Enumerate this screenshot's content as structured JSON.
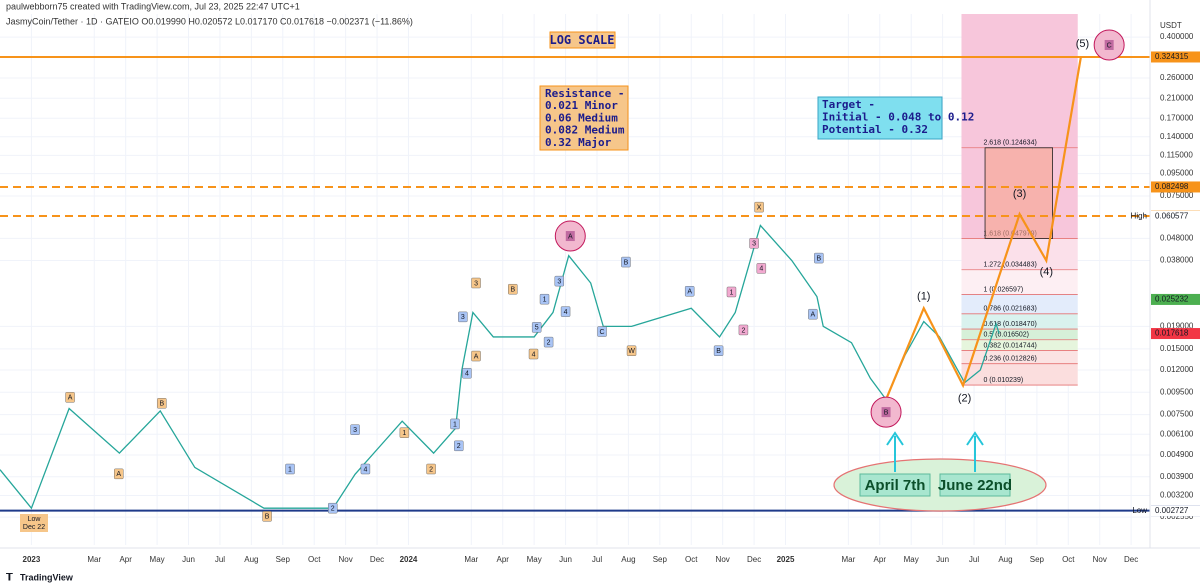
{
  "header": {
    "author": "paulwebborn75 created with TradingView.com, Jul 23, 2025 22:47 UTC+1",
    "symbol": "JasmyCoin/Tether · 1D · GATEIO  O0.019990  H0.020572  L0.017170  C0.017618  −0.002371 (−11.86%)",
    "currency": "USDT",
    "footer": "TradingView"
  },
  "chart_data": {
    "type": "line",
    "log_scale": true,
    "xlim": [
      -1,
      35.6
    ],
    "ylim": [
      0.0019,
      0.51
    ],
    "yticks": [
      {
        "value": 0.4,
        "label": "0.400000"
      },
      {
        "value": 0.26,
        "label": "0.260000"
      },
      {
        "value": 0.21,
        "label": "0.210000"
      },
      {
        "value": 0.17,
        "label": "0.170000"
      },
      {
        "value": 0.14,
        "label": "0.140000"
      },
      {
        "value": 0.115,
        "label": "0.115000"
      },
      {
        "value": 0.095,
        "label": "0.095000"
      },
      {
        "value": 0.075,
        "label": "0.075000"
      },
      {
        "value": 0.048,
        "label": "0.048000"
      },
      {
        "value": 0.038,
        "label": "0.038000"
      },
      {
        "value": 0.019,
        "label": "0.019000"
      },
      {
        "value": 0.015,
        "label": "0.015000"
      },
      {
        "value": 0.012,
        "label": "0.012000"
      },
      {
        "value": 0.0095,
        "label": "0.009500"
      },
      {
        "value": 0.0075,
        "label": "0.007500"
      },
      {
        "value": 0.0061,
        "label": "0.006100"
      },
      {
        "value": 0.0049,
        "label": "0.004900"
      },
      {
        "value": 0.0039,
        "label": "0.003900"
      },
      {
        "value": 0.0032,
        "label": "0.003200"
      },
      {
        "value": 0.00255,
        "label": "0.002550"
      }
    ],
    "xticks": [
      {
        "value": 0,
        "label": "2023"
      },
      {
        "value": 2,
        "label": "Mar"
      },
      {
        "value": 3,
        "label": "Apr"
      },
      {
        "value": 4,
        "label": "May"
      },
      {
        "value": 5,
        "label": "Jun"
      },
      {
        "value": 6,
        "label": "Jul"
      },
      {
        "value": 7,
        "label": "Aug"
      },
      {
        "value": 8,
        "label": "Sep"
      },
      {
        "value": 9,
        "label": "Oct"
      },
      {
        "value": 10,
        "label": "Nov"
      },
      {
        "value": 11,
        "label": "Dec"
      },
      {
        "value": 12,
        "label": "2024"
      },
      {
        "value": 14,
        "label": "Mar"
      },
      {
        "value": 15,
        "label": "Apr"
      },
      {
        "value": 16,
        "label": "May"
      },
      {
        "value": 17,
        "label": "Jun"
      },
      {
        "value": 18,
        "label": "Jul"
      },
      {
        "value": 19,
        "label": "Aug"
      },
      {
        "value": 20,
        "label": "Sep"
      },
      {
        "value": 21,
        "label": "Oct"
      },
      {
        "value": 22,
        "label": "Nov"
      },
      {
        "value": 23,
        "label": "Dec"
      },
      {
        "value": 24,
        "label": "2025"
      },
      {
        "value": 26,
        "label": "Mar"
      },
      {
        "value": 27,
        "label": "Apr"
      },
      {
        "value": 28,
        "label": "May"
      },
      {
        "value": 29,
        "label": "Jun"
      },
      {
        "value": 30,
        "label": "Jul"
      },
      {
        "value": 31,
        "label": "Aug"
      },
      {
        "value": 32,
        "label": "Sep"
      },
      {
        "value": 33,
        "label": "Oct"
      },
      {
        "value": 34,
        "label": "Nov"
      },
      {
        "value": 35,
        "label": "Dec"
      }
    ],
    "price": {
      "color": "#26a69a",
      "x": [
        -1,
        0,
        1.2,
        2.8,
        4.1,
        5.2,
        7.4,
        9.6,
        10.3,
        11.8,
        12.8,
        13.5,
        13.7,
        14.05,
        14.7,
        16,
        16.6,
        17.1,
        17.8,
        18.2,
        19.1,
        21,
        21.9,
        22.4,
        23.2,
        24.2,
        25,
        25.2,
        26.1,
        26.7,
        27.2,
        27.8,
        28.4,
        28.9,
        29.7,
        30.2,
        30.7,
        30.8
      ],
      "values": [
        0.0042,
        0.0028,
        0.008,
        0.005,
        0.0078,
        0.0043,
        0.0028,
        0.0028,
        0.004,
        0.007,
        0.005,
        0.0065,
        0.012,
        0.022,
        0.017,
        0.017,
        0.022,
        0.04,
        0.03,
        0.019,
        0.019,
        0.023,
        0.017,
        0.022,
        0.055,
        0.038,
        0.026,
        0.019,
        0.016,
        0.011,
        0.0088,
        0.014,
        0.02,
        0.017,
        0.0105,
        0.012,
        0.0195,
        0.0176
      ]
    },
    "waves": {
      "color": "#f7931a",
      "x": [
        27.2,
        28.4,
        29.65,
        31.45,
        32.3,
        33.4
      ],
      "values": [
        0.0088,
        0.023,
        0.0102,
        0.062,
        0.038,
        0.324
      ]
    },
    "wave_labels": [
      {
        "label": "(1)",
        "x": 28.4,
        "value": 0.026
      },
      {
        "label": "(2)",
        "x": 29.7,
        "value": 0.0089
      },
      {
        "label": "(3)",
        "x": 31.45,
        "value": 0.0765
      },
      {
        "label": "(4)",
        "x": 32.3,
        "value": 0.0336
      },
      {
        "label": "(5)",
        "x": 33.45,
        "value": 0.371
      }
    ],
    "circles": [
      {
        "label": "A",
        "x": 17.15,
        "value": 0.0492
      },
      {
        "label": "C",
        "x": 34.3,
        "value": 0.368
      },
      {
        "label": "B",
        "x": 27.2,
        "value": 0.0077
      }
    ],
    "markers": [
      {
        "label": "A",
        "x": 1.23,
        "value": 0.009,
        "color": "#f6c68a"
      },
      {
        "label": "A",
        "x": 2.78,
        "value": 0.00402,
        "color": "#f6c68a"
      },
      {
        "label": "B",
        "x": 4.15,
        "value": 0.00845,
        "color": "#f6c68a"
      },
      {
        "label": "B",
        "x": 7.5,
        "value": 0.00257,
        "color": "#f6c68a"
      },
      {
        "label": "1",
        "x": 8.23,
        "value": 0.00423,
        "color": "#a9c4f5"
      },
      {
        "label": "2",
        "x": 9.59,
        "value": 0.0028,
        "color": "#a9c4f5"
      },
      {
        "label": "3",
        "x": 10.3,
        "value": 0.0064,
        "color": "#a9c4f5"
      },
      {
        "label": "4",
        "x": 10.63,
        "value": 0.00423,
        "color": "#a9c4f5"
      },
      {
        "label": "1",
        "x": 11.87,
        "value": 0.0062,
        "color": "#f6c68a"
      },
      {
        "label": "2",
        "x": 12.72,
        "value": 0.00423,
        "color": "#f6c68a"
      },
      {
        "label": "1",
        "x": 13.48,
        "value": 0.0068,
        "color": "#a9c4f5"
      },
      {
        "label": "2",
        "x": 13.6,
        "value": 0.0054,
        "color": "#a9c4f5"
      },
      {
        "label": "3",
        "x": 13.73,
        "value": 0.021,
        "color": "#a9c4f5"
      },
      {
        "label": "4",
        "x": 13.86,
        "value": 0.0116,
        "color": "#a9c4f5"
      },
      {
        "label": "3",
        "x": 14.15,
        "value": 0.03,
        "color": "#f6c68a"
      },
      {
        "label": "A",
        "x": 14.15,
        "value": 0.0139,
        "color": "#f6c68a"
      },
      {
        "label": "B",
        "x": 15.32,
        "value": 0.0281,
        "color": "#f6c68a"
      },
      {
        "label": "4",
        "x": 15.98,
        "value": 0.0142,
        "color": "#f6c68a"
      },
      {
        "label": "5",
        "x": 16.08,
        "value": 0.0188,
        "color": "#a9c4f5"
      },
      {
        "label": "1",
        "x": 16.33,
        "value": 0.0253,
        "color": "#a9c4f5"
      },
      {
        "label": "2",
        "x": 16.46,
        "value": 0.0161,
        "color": "#a9c4f5"
      },
      {
        "label": "3",
        "x": 16.8,
        "value": 0.0306,
        "color": "#a9c4f5"
      },
      {
        "label": "4",
        "x": 17.0,
        "value": 0.0222,
        "color": "#a9c4f5"
      },
      {
        "label": "C",
        "x": 18.16,
        "value": 0.018,
        "color": "#a9c4f5"
      },
      {
        "label": "B",
        "x": 18.92,
        "value": 0.0374,
        "color": "#a9c4f5"
      },
      {
        "label": "W",
        "x": 19.1,
        "value": 0.0147,
        "color": "#f6c68a"
      },
      {
        "label": "A",
        "x": 20.95,
        "value": 0.0275,
        "color": "#a9c4f5"
      },
      {
        "label": "B",
        "x": 21.87,
        "value": 0.0147,
        "color": "#a9c4f5"
      },
      {
        "label": "1",
        "x": 22.28,
        "value": 0.0273,
        "color": "#f2a9d0"
      },
      {
        "label": "2",
        "x": 22.66,
        "value": 0.0183,
        "color": "#f2a9d0"
      },
      {
        "label": "3",
        "x": 23.0,
        "value": 0.0456,
        "color": "#f2a9d0"
      },
      {
        "label": "4",
        "x": 23.23,
        "value": 0.035,
        "color": "#f2a9d0"
      },
      {
        "label": "X",
        "x": 23.16,
        "value": 0.0667,
        "color": "#f6c68a"
      },
      {
        "label": "A",
        "x": 24.87,
        "value": 0.0216,
        "color": "#a9c4f5"
      },
      {
        "label": "B",
        "x": 25.06,
        "value": 0.039,
        "color": "#a9c4f5"
      }
    ],
    "fib": {
      "x": [
        29.6,
        33.3
      ],
      "levels": [
        {
          "value": 0.124634,
          "label": "2.618 (0.124634)",
          "color": "#f7c6db"
        },
        {
          "value": 0.047979,
          "label": "1.618 (0.047979)",
          "color": "#fbe0ea"
        },
        {
          "value": 0.034483,
          "label": "1.272 (0.034483)",
          "color": "#fdeff3"
        },
        {
          "value": 0.026597,
          "label": "1 (0.026597)",
          "color": "#e3ecfb"
        },
        {
          "value": 0.021683,
          "label": "0.786 (0.021683)",
          "color": "#d9f2ee"
        },
        {
          "value": 0.01847,
          "label": "0.618 (0.018470)",
          "color": "#d6f0d8"
        },
        {
          "value": 0.016502,
          "label": "0.5 (0.016502)",
          "color": "#e6f5dd"
        },
        {
          "value": 0.014744,
          "label": "0.382 (0.014744)",
          "color": "#fbe3e3"
        },
        {
          "value": 0.012826,
          "label": "0.236 (0.012826)",
          "color": "#fbdede"
        },
        {
          "value": 0.010239,
          "label": "0 (0.010239)",
          "color": "#ffffff"
        }
      ]
    },
    "target_zone": {
      "x": [
        30.35,
        32.5
      ],
      "values": [
        0.047979,
        0.124634
      ],
      "color": "#f6a58e"
    },
    "hlines": [
      {
        "value": 0.324315,
        "color": "#f7931a",
        "dashed": false
      },
      {
        "value": 0.082498,
        "color": "#f7931a",
        "dashed": true
      },
      {
        "value": 0.060773,
        "color": "#f7931a",
        "dashed": true
      },
      {
        "value": 0.002729,
        "color": "#1e3a8a",
        "dashed": false
      }
    ],
    "price_tags": [
      {
        "value": 0.324315,
        "label": "0.324315",
        "color": "#f7931a"
      },
      {
        "value": 0.082498,
        "label": "0.082498",
        "color": "#f7931a"
      },
      {
        "value": 0.060773,
        "label": "0.060773",
        "color": "#f7931a"
      },
      {
        "value": 0.060577,
        "label": "0.060577",
        "color": "#ffffff",
        "note": "High"
      },
      {
        "value": 0.025232,
        "label": "0.025232",
        "color": "#4caf50"
      },
      {
        "value": 0.017618,
        "label": "0.017618",
        "color": "#f23645"
      },
      {
        "value": 0.002729,
        "label": "0.002729",
        "color": "#1e3a8a"
      },
      {
        "value": 0.002727,
        "label": "0.002727",
        "color": "#ffffff",
        "note": "Low"
      }
    ],
    "annotations": {
      "log_scale": "LOG SCALE",
      "resistance": [
        "Resistance -",
        "0.021 Minor",
        "0.06 Medium",
        "0.082 Medium",
        "0.32 Major"
      ],
      "target": [
        "Target -",
        "Initial - 0.048 to 0.12",
        "Potential - 0.32"
      ],
      "dates": [
        "April 7th",
        "June 22nd"
      ],
      "low": [
        "Low",
        "Dec 22"
      ]
    }
  }
}
